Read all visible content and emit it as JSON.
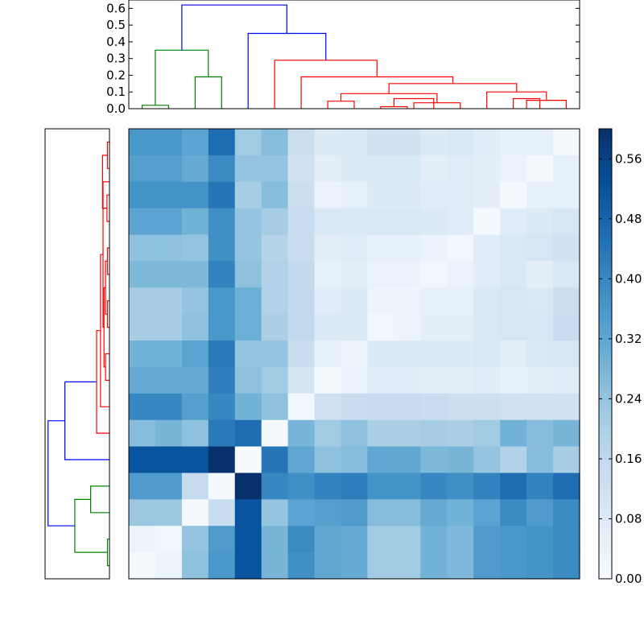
{
  "chart_data": {
    "type": "heatmap",
    "colormap": "Blues",
    "size": 17,
    "colorbar": {
      "min": 0,
      "max": 0.6,
      "ticks": [
        0.0,
        0.08,
        0.16,
        0.24,
        0.32,
        0.4,
        0.48,
        0.56
      ],
      "tick_labels": [
        "0.00",
        "0.08",
        "0.16",
        "0.24",
        "0.32",
        "0.40",
        "0.48",
        "0.56"
      ]
    },
    "top_dendrogram": {
      "ylim": [
        0,
        0.65
      ],
      "ticks": [
        0.0,
        0.1,
        0.2,
        0.3,
        0.4,
        0.5,
        0.6
      ],
      "tick_labels": [
        "0.0",
        "0.1",
        "0.2",
        "0.3",
        "0.4",
        "0.5",
        "0.6"
      ],
      "links": [
        {
          "x1": 0.5,
          "x2": 1.5,
          "h": 0.02,
          "color": "#008000"
        },
        {
          "x1": 2.5,
          "x2": 3.5,
          "h": 0.19,
          "color": "#008000"
        },
        {
          "x1": 1.0,
          "x2": 3.0,
          "h": 0.35,
          "color": "#008000"
        },
        {
          "x1": 7.5,
          "x2": 8.5,
          "h": 0.045,
          "color": "#ff0000"
        },
        {
          "x1": 9.5,
          "x2": 10.5,
          "h": 0.012,
          "color": "#ff0000"
        },
        {
          "x1": 10.0,
          "x2": 11.5,
          "h": 0.06,
          "color": "#ff0000"
        },
        {
          "x1": 10.75,
          "x2": 12.5,
          "h": 0.035,
          "color": "#ff0000"
        },
        {
          "x1": 8.0,
          "x2": 11.625,
          "h": 0.09,
          "color": "#ff0000"
        },
        {
          "x1": 14.5,
          "x2": 15.5,
          "h": 0.06,
          "color": "#ff0000"
        },
        {
          "x1": 15.0,
          "x2": 16.5,
          "h": 0.05,
          "color": "#ff0000"
        },
        {
          "x1": 13.5,
          "x2": 15.75,
          "h": 0.1,
          "color": "#ff0000"
        },
        {
          "x1": 9.8125,
          "x2": 14.625,
          "h": 0.15,
          "color": "#ff0000"
        },
        {
          "x1": 6.5,
          "x2": 12.22,
          "h": 0.19,
          "color": "#ff0000"
        },
        {
          "x1": 5.5,
          "x2": 9.36,
          "h": 0.29,
          "color": "#ff0000"
        },
        {
          "x1": 4.5,
          "x2": 7.43,
          "h": 0.45,
          "color": "#0000ff"
        },
        {
          "x1": 2.0,
          "x2": 5.96,
          "h": 0.62,
          "color": "#0000ff"
        }
      ]
    },
    "left_dendrogram": {
      "links": [
        {
          "y1": 0.5,
          "y2": 1.5,
          "h": 0.02,
          "color": "#008000"
        },
        {
          "y1": 2.5,
          "y2": 3.5,
          "h": 0.19,
          "color": "#008000"
        },
        {
          "y1": 1.0,
          "y2": 3.0,
          "h": 0.35,
          "color": "#008000"
        },
        {
          "y1": 13.5,
          "y2": 14.5,
          "h": 0.025,
          "color": "#ff0000"
        },
        {
          "y1": 15.5,
          "y2": 16.5,
          "h": 0.02,
          "color": "#ff0000"
        },
        {
          "y1": 14.0,
          "y2": 16.0,
          "h": 0.07,
          "color": "#ff0000"
        },
        {
          "y1": 11.5,
          "y2": 12.5,
          "h": 0.02,
          "color": "#ff0000"
        },
        {
          "y1": 9.5,
          "y2": 10.5,
          "h": 0.02,
          "color": "#ff0000"
        },
        {
          "y1": 10.0,
          "y2": 12.0,
          "h": 0.04,
          "color": "#ff0000"
        },
        {
          "y1": 7.5,
          "y2": 8.5,
          "h": 0.04,
          "color": "#ff0000"
        },
        {
          "y1": 8.0,
          "y2": 11.0,
          "h": 0.055,
          "color": "#ff0000"
        },
        {
          "y1": 9.5,
          "y2": 15.0,
          "h": 0.065,
          "color": "#ff0000"
        },
        {
          "y1": 6.5,
          "y2": 12.25,
          "h": 0.09,
          "color": "#ff0000"
        },
        {
          "y1": 5.5,
          "y2": 9.375,
          "h": 0.13,
          "color": "#ff0000"
        },
        {
          "y1": 4.5,
          "y2": 7.44,
          "h": 0.45,
          "color": "#0000ff"
        },
        {
          "y1": 2.0,
          "y2": 5.97,
          "h": 0.62,
          "color": "#0000ff"
        }
      ]
    },
    "matrix": [
      [
        0.36,
        0.36,
        0.33,
        0.46,
        0.22,
        0.26,
        0.13,
        0.08,
        0.09,
        0.12,
        0.12,
        0.08,
        0.09,
        0.07,
        0.05,
        0.05,
        0.01
      ],
      [
        0.34,
        0.34,
        0.31,
        0.39,
        0.24,
        0.24,
        0.12,
        0.06,
        0.08,
        0.09,
        0.09,
        0.06,
        0.07,
        0.06,
        0.04,
        0.01,
        0.05
      ],
      [
        0.37,
        0.37,
        0.37,
        0.44,
        0.21,
        0.26,
        0.13,
        0.04,
        0.05,
        0.08,
        0.08,
        0.07,
        0.07,
        0.06,
        0.01,
        0.05,
        0.05
      ],
      [
        0.33,
        0.33,
        0.29,
        0.38,
        0.24,
        0.21,
        0.14,
        0.09,
        0.09,
        0.09,
        0.09,
        0.08,
        0.07,
        0.01,
        0.07,
        0.08,
        0.1
      ],
      [
        0.25,
        0.25,
        0.24,
        0.38,
        0.24,
        0.18,
        0.14,
        0.06,
        0.07,
        0.05,
        0.05,
        0.04,
        0.02,
        0.07,
        0.09,
        0.1,
        0.12
      ],
      [
        0.27,
        0.27,
        0.27,
        0.41,
        0.25,
        0.19,
        0.16,
        0.05,
        0.06,
        0.04,
        0.04,
        0.02,
        0.04,
        0.07,
        0.09,
        0.06,
        0.09
      ],
      [
        0.21,
        0.21,
        0.24,
        0.36,
        0.3,
        0.19,
        0.16,
        0.07,
        0.08,
        0.03,
        0.03,
        0.05,
        0.05,
        0.09,
        0.1,
        0.09,
        0.13
      ],
      [
        0.21,
        0.21,
        0.25,
        0.36,
        0.3,
        0.2,
        0.16,
        0.08,
        0.08,
        0.02,
        0.03,
        0.06,
        0.06,
        0.09,
        0.1,
        0.1,
        0.14
      ],
      [
        0.29,
        0.29,
        0.33,
        0.43,
        0.24,
        0.24,
        0.14,
        0.05,
        0.03,
        0.08,
        0.08,
        0.08,
        0.08,
        0.09,
        0.06,
        0.09,
        0.1
      ],
      [
        0.31,
        0.31,
        0.31,
        0.42,
        0.25,
        0.22,
        0.11,
        0.01,
        0.04,
        0.07,
        0.07,
        0.06,
        0.06,
        0.07,
        0.05,
        0.06,
        0.07
      ],
      [
        0.4,
        0.4,
        0.34,
        0.4,
        0.29,
        0.25,
        0.02,
        0.12,
        0.14,
        0.15,
        0.15,
        0.14,
        0.13,
        0.13,
        0.12,
        0.12,
        0.12
      ],
      [
        0.26,
        0.28,
        0.25,
        0.43,
        0.46,
        0.01,
        0.28,
        0.22,
        0.25,
        0.2,
        0.2,
        0.21,
        0.2,
        0.22,
        0.29,
        0.26,
        0.28
      ],
      [
        0.52,
        0.52,
        0.52,
        0.6,
        0.0,
        0.44,
        0.32,
        0.25,
        0.26,
        0.32,
        0.32,
        0.27,
        0.28,
        0.24,
        0.19,
        0.26,
        0.21
      ],
      [
        0.35,
        0.35,
        0.15,
        0.01,
        0.6,
        0.4,
        0.38,
        0.41,
        0.42,
        0.37,
        0.37,
        0.4,
        0.38,
        0.41,
        0.46,
        0.41,
        0.46
      ],
      [
        0.23,
        0.23,
        0.01,
        0.14,
        0.52,
        0.24,
        0.33,
        0.34,
        0.35,
        0.26,
        0.26,
        0.31,
        0.29,
        0.33,
        0.39,
        0.35,
        0.39
      ],
      [
        0.03,
        0.02,
        0.24,
        0.35,
        0.52,
        0.28,
        0.39,
        0.32,
        0.31,
        0.22,
        0.22,
        0.29,
        0.27,
        0.35,
        0.36,
        0.37,
        0.39
      ],
      [
        0.01,
        0.03,
        0.25,
        0.36,
        0.52,
        0.28,
        0.38,
        0.32,
        0.31,
        0.22,
        0.22,
        0.29,
        0.27,
        0.35,
        0.36,
        0.37,
        0.39
      ]
    ]
  }
}
